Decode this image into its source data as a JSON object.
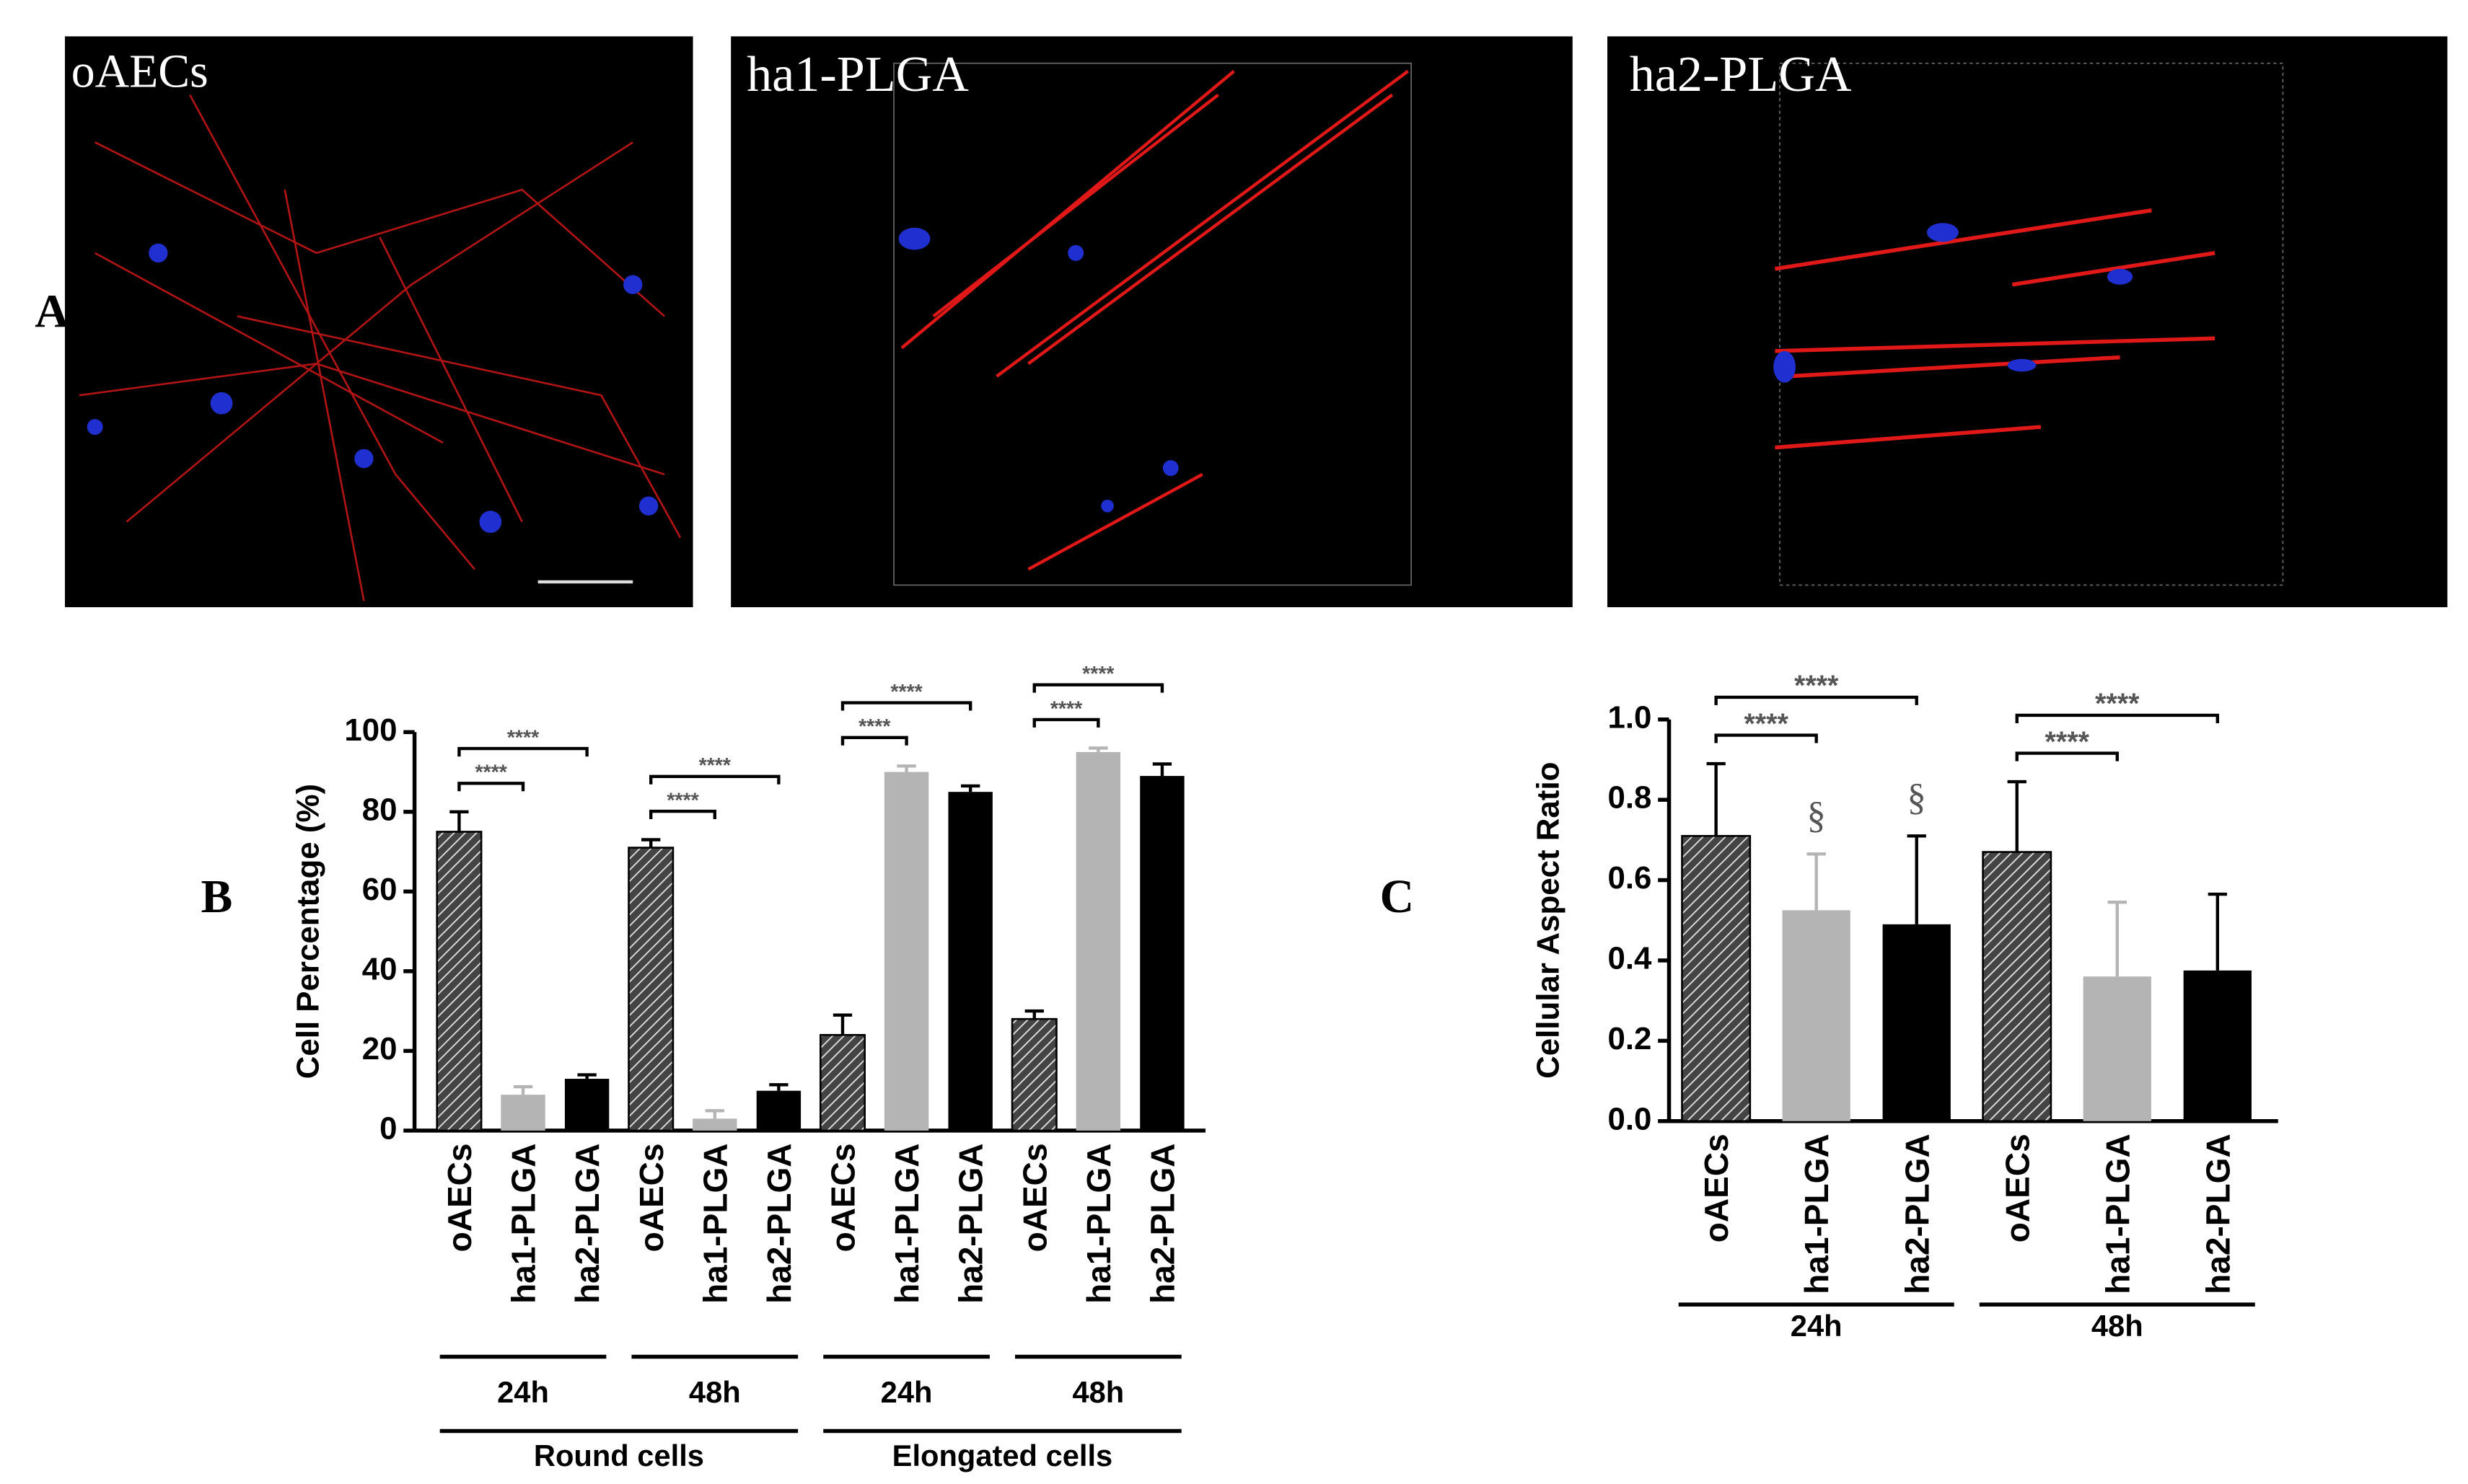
{
  "figure": {
    "panel_label": "A",
    "images": [
      "oAECs",
      "ha1-PLGA",
      "ha2-PLGA"
    ]
  },
  "chart_data": [
    {
      "type": "bar",
      "panel_label": "B",
      "y_label": "Cell Percentage (%)",
      "categories": [
        "oAECs",
        "ha1-PLGA",
        "ha2-PLGA",
        "oAECs",
        "ha1-PLGA",
        "ha2-PLGA",
        "oAECs",
        "ha1-PLGA",
        "ha2-PLGA",
        "oAECs",
        "ha1-PLGA",
        "ha2-PLGA"
      ],
      "values": [
        75,
        9,
        13,
        71,
        3,
        10,
        24,
        90,
        85,
        28,
        95,
        89
      ],
      "errors": [
        5,
        2,
        1,
        2,
        2,
        1.5,
        5,
        1.5,
        1.5,
        2,
        1,
        3
      ],
      "bar_styles": [
        "hatched",
        "#b4b4b4",
        "#000000"
      ],
      "group_labels": [
        "24h",
        "48h",
        "24h",
        "48h"
      ],
      "super_labels": [
        "Round cells",
        "Elongated cells"
      ],
      "comparisons": [
        {
          "from": 0,
          "to": 1,
          "label": "****"
        },
        {
          "from": 0,
          "to": 2,
          "label": "****"
        },
        {
          "from": 3,
          "to": 4,
          "label": "****"
        },
        {
          "from": 3,
          "to": 5,
          "label": "****"
        },
        {
          "from": 6,
          "to": 7,
          "label": "****"
        },
        {
          "from": 6,
          "to": 8,
          "label": "****"
        },
        {
          "from": 9,
          "to": 10,
          "label": "****"
        },
        {
          "from": 9,
          "to": 11,
          "label": "****"
        }
      ],
      "ylim": [
        0,
        100
      ],
      "yticks": [
        0,
        20,
        40,
        60,
        80,
        100
      ]
    },
    {
      "type": "bar",
      "panel_label": "C",
      "y_label": "Cellular Aspect Ratio",
      "categories": [
        "oAECs",
        "ha1-PLGA",
        "ha2-PLGA",
        "oAECs",
        "ha1-PLGA",
        "ha2-PLGA"
      ],
      "values": [
        0.71,
        0.525,
        0.49,
        0.67,
        0.36,
        0.375
      ],
      "errors": [
        0.18,
        0.14,
        0.22,
        0.175,
        0.185,
        0.19
      ],
      "bar_styles": [
        "hatched",
        "#b4b4b4",
        "#000000"
      ],
      "group_labels": [
        "24h",
        "48h"
      ],
      "symbols": [
        {
          "index": 1,
          "text": "§"
        },
        {
          "index": 2,
          "text": "§"
        }
      ],
      "comparisons": [
        {
          "from": 0,
          "to": 1,
          "label": "****"
        },
        {
          "from": 0,
          "to": 2,
          "label": "****"
        },
        {
          "from": 3,
          "to": 4,
          "label": "****"
        },
        {
          "from": 3,
          "to": 5,
          "label": "****"
        }
      ],
      "ylim": [
        0,
        1
      ],
      "yticks": [
        {
          "value": 0,
          "label": "0.0"
        },
        0.2,
        0.4,
        0.6,
        0.8,
        {
          "value": 1,
          "label": "1.0"
        }
      ]
    }
  ]
}
